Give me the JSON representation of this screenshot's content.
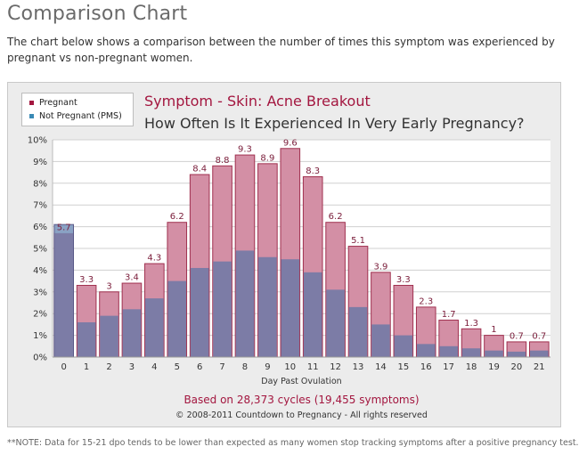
{
  "page": {
    "heading": "Comparison Chart",
    "intro": "The chart below shows a comparison between the number of times this symptom was experienced by pregnant vs non-pregnant women.",
    "footnote": "**NOTE: Data for 15-21 dpo tends to be lower than expected as many women stop tracking symptoms after a positive pregnancy test."
  },
  "legend": {
    "pregnant": "Pregnant",
    "not_pregnant": "Not Pregnant (PMS)"
  },
  "colors": {
    "pregnant_fill": "#d38fa5",
    "pregnant_stroke": "#a0304f",
    "not_pregnant_fill": "#7c7ca6",
    "not_pregnant_stroke": "#5a5a88",
    "not_pregnant_tip": "#8aa2c4",
    "title_red": "#a3163f",
    "legend_pregnant": "#a3163f",
    "legend_not_pregnant": "#3a8ab5"
  },
  "chart_data": {
    "type": "bar",
    "title": "Symptom - Skin: Acne Breakout",
    "subtitle": "How Often Is It Experienced In Very Early Pregnancy?",
    "xlabel": "Day Past Ovulation",
    "ylabel": "",
    "ylim": [
      0,
      10
    ],
    "yticks": [
      "0%",
      "1%",
      "2%",
      "3%",
      "4%",
      "5%",
      "6%",
      "7%",
      "8%",
      "9%",
      "10%"
    ],
    "categories": [
      "0",
      "1",
      "2",
      "3",
      "4",
      "5",
      "6",
      "7",
      "8",
      "9",
      "10",
      "11",
      "12",
      "13",
      "14",
      "15",
      "16",
      "17",
      "18",
      "19",
      "20",
      "21"
    ],
    "series": [
      {
        "name": "Pregnant",
        "values": [
          5.7,
          3.3,
          3,
          3.4,
          4.3,
          6.2,
          8.4,
          8.8,
          9.3,
          8.9,
          9.6,
          8.3,
          6.2,
          5.1,
          3.9,
          3.3,
          2.3,
          1.7,
          1.3,
          1,
          0.7,
          0.7
        ],
        "labels": [
          "5.7",
          "3.3",
          "3",
          "3.4",
          "4.3",
          "6.2",
          "8.4",
          "8.8",
          "9.3",
          "8.9",
          "9.6",
          "8.3",
          "6.2",
          "5.1",
          "3.9",
          "3.3",
          "2.3",
          "1.7",
          "1.3",
          "1",
          "0.7",
          "0.7"
        ]
      },
      {
        "name": "Not Pregnant (PMS)",
        "values": [
          6.1,
          1.6,
          1.9,
          2.2,
          2.7,
          3.5,
          4.1,
          4.4,
          4.9,
          4.6,
          4.5,
          3.9,
          3.1,
          2.3,
          1.5,
          1.0,
          0.6,
          0.5,
          0.4,
          0.3,
          0.25,
          0.3
        ]
      }
    ],
    "footer_primary": "Based on 28,373 cycles (19,455 symptoms)",
    "footer_secondary": "© 2008-2011 Countdown to Pregnancy - All rights reserved"
  }
}
